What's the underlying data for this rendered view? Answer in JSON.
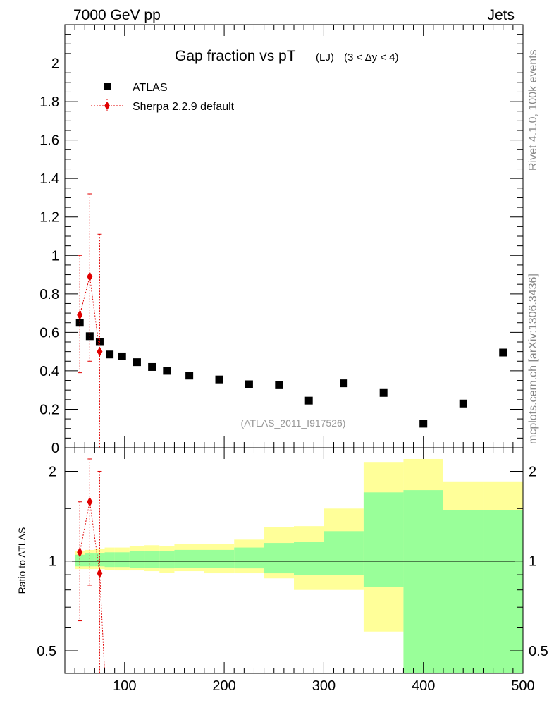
{
  "header": {
    "energy_label": "7000 GeV pp",
    "category_label": "Jets"
  },
  "side_labels": {
    "rivet": "Rivet 4.1.0,  100k events",
    "source": "mcplots.cern.ch [arXiv:1306.3436]"
  },
  "chart_data": [
    {
      "type": "scatter",
      "title": "Gap fraction vs pT",
      "title_sub1": "(LJ)",
      "title_sub2": "(3 < Δy < 4)",
      "analysis_tag": "(ATLAS_2011_I917526)",
      "xlabel": "",
      "ylabel": "",
      "xlim": [
        40,
        500
      ],
      "ylim": [
        0,
        2.2
      ],
      "x_ticks": [
        100,
        200,
        300,
        400,
        500
      ],
      "y_ticks": [
        0,
        0.2,
        0.4,
        0.6,
        0.8,
        1,
        1.2,
        1.4,
        1.6,
        1.8,
        2
      ],
      "y_tick_labels": [
        "0",
        "0.2",
        "0.4",
        "0.6",
        "0.8",
        "1",
        "1.2",
        "1.4",
        "1.6",
        "1.8",
        "2"
      ],
      "legend_position": "top-left",
      "series": [
        {
          "name": "ATLAS",
          "marker": "square",
          "color": "#000000",
          "x": [
            55,
            65,
            75,
            85,
            97.5,
            112.5,
            127.5,
            142.5,
            165,
            195,
            225,
            255,
            285,
            320,
            360,
            400,
            440,
            480
          ],
          "y": [
            0.65,
            0.58,
            0.55,
            0.485,
            0.475,
            0.445,
            0.42,
            0.4,
            0.375,
            0.355,
            0.33,
            0.325,
            0.245,
            0.335,
            0.285,
            0.125,
            0.23,
            0.495
          ]
        },
        {
          "name": "Sherpa 2.2.9 default",
          "marker": "diamond",
          "color": "#e00000",
          "x": [
            55,
            65,
            75
          ],
          "y": [
            0.69,
            0.89,
            0.5
          ],
          "y_low": [
            0.39,
            0.45,
            0.0
          ],
          "y_high": [
            1.0,
            1.32,
            1.11
          ]
        }
      ]
    },
    {
      "type": "bar",
      "title": "",
      "ylabel": "Ratio to ATLAS",
      "xlabel": "",
      "xlim": [
        40,
        500
      ],
      "ylim": [
        0.42,
        2.4
      ],
      "y_scale": "log",
      "x_ticks": [
        100,
        200,
        300,
        400,
        500
      ],
      "x_tick_labels": [
        "100",
        "200",
        "300",
        "400",
        "500"
      ],
      "y_ticks": [
        0.5,
        1,
        2
      ],
      "y_tick_labels": [
        "0.5",
        "1",
        "2"
      ],
      "bands": {
        "bin_edges": [
          50,
          60,
          70,
          80,
          90,
          105,
          120,
          135,
          150,
          180,
          210,
          240,
          270,
          300,
          340,
          380,
          420,
          460,
          500
        ],
        "yellow_low": [
          0.94,
          0.94,
          0.94,
          0.935,
          0.93,
          0.93,
          0.925,
          0.915,
          0.925,
          0.91,
          0.91,
          0.875,
          0.8,
          0.8,
          0.58,
          0.37,
          0.37,
          0.62
        ],
        "yellow_high": [
          1.08,
          1.09,
          1.1,
          1.11,
          1.11,
          1.12,
          1.13,
          1.12,
          1.14,
          1.14,
          1.18,
          1.3,
          1.31,
          1.5,
          2.15,
          2.2,
          1.85,
          1.85
        ],
        "green_low": [
          0.96,
          0.96,
          0.96,
          0.955,
          0.955,
          0.95,
          0.95,
          0.945,
          0.95,
          0.95,
          0.945,
          0.91,
          0.9,
          0.9,
          0.82,
          0.37,
          0.37,
          0.37
        ],
        "green_high": [
          1.05,
          1.06,
          1.06,
          1.07,
          1.07,
          1.08,
          1.08,
          1.08,
          1.09,
          1.09,
          1.11,
          1.15,
          1.16,
          1.26,
          1.7,
          1.73,
          1.48,
          1.48
        ],
        "yellow_color": "#ffff99",
        "green_color": "#99ff99"
      },
      "series": [
        {
          "name": "Sherpa 2.2.9 default",
          "color": "#e00000",
          "x": [
            55,
            65,
            75
          ],
          "y": [
            1.07,
            1.58,
            0.91
          ],
          "y_low": [
            0.63,
            0.83,
            0.3
          ],
          "y_high": [
            1.58,
            2.2,
            2.0
          ]
        }
      ]
    }
  ]
}
